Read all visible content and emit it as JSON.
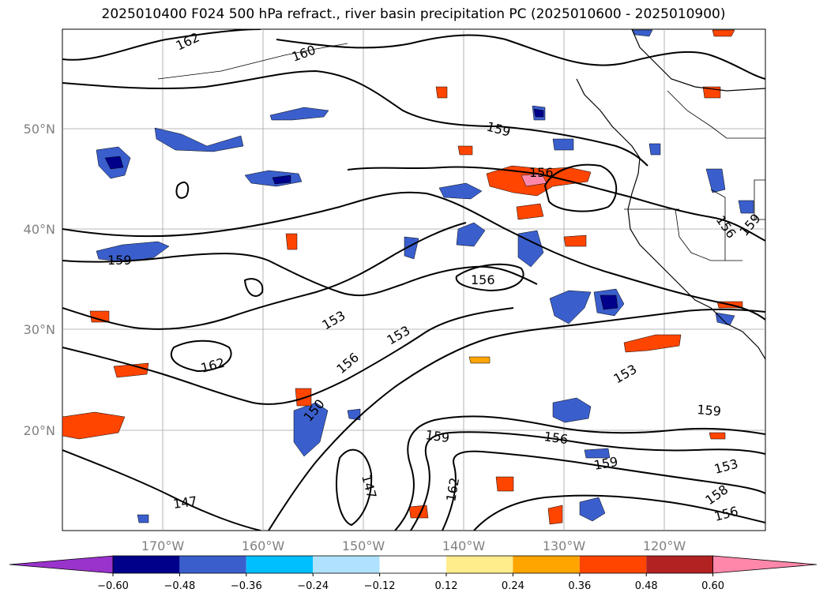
{
  "title": "2025010400 F024 500 hPa refract., river basin precipitation PC (2025010600 - 2025010900)",
  "map": {
    "lat_labels": [
      "50°N",
      "40°N",
      "30°N",
      "20°N"
    ],
    "lon_labels": [
      "170°W",
      "160°W",
      "150°W",
      "140°W",
      "130°W",
      "120°W"
    ],
    "contour_labels": [
      "162",
      "160",
      "159",
      "156",
      "159",
      "156",
      "156",
      "159",
      "153",
      "153",
      "156",
      "162",
      "150",
      "159",
      "156",
      "147",
      "162",
      "159",
      "153",
      "159",
      "153",
      "158",
      "156",
      "147"
    ]
  },
  "colorbar": {
    "tick_labels": [
      "−0.60",
      "−0.48",
      "−0.36",
      "−0.24",
      "−0.12",
      "0.12",
      "0.24",
      "0.36",
      "0.48",
      "0.60"
    ],
    "colors": [
      "#9933cc",
      "#00008b",
      "#3a5fcd",
      "#00bfff",
      "#b0e2ff",
      "#ffffff",
      "#ffec8b",
      "#ffa500",
      "#ff4500",
      "#b22222",
      "#ff88aa"
    ]
  },
  "colors": {
    "contour": "#000000",
    "grid": "#a0a0a0",
    "coast": "#000000"
  }
}
